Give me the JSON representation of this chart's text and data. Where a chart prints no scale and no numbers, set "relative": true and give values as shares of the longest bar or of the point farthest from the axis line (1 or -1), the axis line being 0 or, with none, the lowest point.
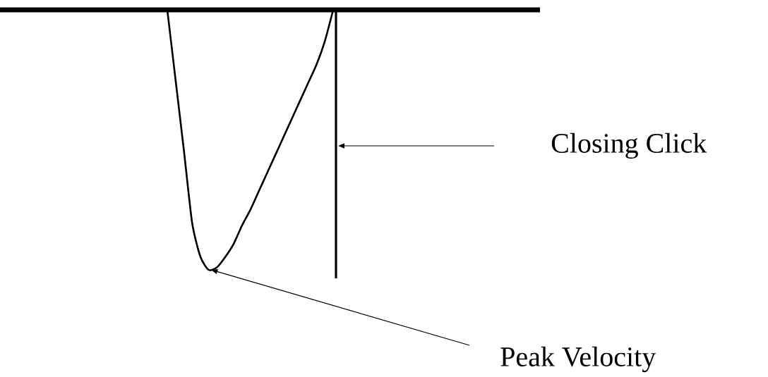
{
  "chart_data": {
    "type": "line",
    "relative": true,
    "categories": [
      null,
      null,
      null,
      null,
      null,
      null,
      null,
      null,
      null,
      null,
      null,
      null,
      null,
      null,
      null,
      null,
      null,
      null,
      null,
      null,
      null
    ],
    "values": [
      0,
      -0.27,
      -0.54,
      -0.82,
      -0.95,
      -1,
      -0.99,
      -0.95,
      -0.9,
      -0.83,
      -0.77,
      -0.7,
      -0.63,
      -0.56,
      -0.49,
      -0.42,
      -0.35,
      -0.28,
      -0.21,
      -0.12,
      0
    ],
    "color": "#000000",
    "annotations": [
      "Closing Click",
      "Peak Velocity"
    ]
  }
}
